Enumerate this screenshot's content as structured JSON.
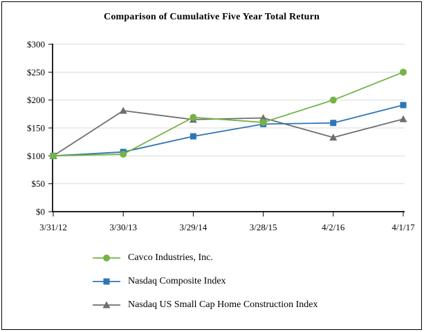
{
  "chart_data": {
    "type": "line",
    "title": "Comparison of Cumulative Five Year Total Return",
    "categories": [
      "3/31/12",
      "3/30/13",
      "3/29/14",
      "3/28/15",
      "4/2/16",
      "4/1/17"
    ],
    "series": [
      {
        "name": "Cavco Industries, Inc.",
        "marker": "circle",
        "color": "#74B347",
        "values": [
          100,
          103,
          169,
          160,
          200,
          250
        ]
      },
      {
        "name": "Nasdaq Composite Index",
        "marker": "square",
        "color": "#2E75B6",
        "values": [
          100,
          107,
          135,
          157,
          159,
          191
        ]
      },
      {
        "name": "Nasdaq US Small Cap Home Construction Index",
        "marker": "triangle",
        "color": "#6E6E6E",
        "values": [
          100,
          181,
          165,
          168,
          133,
          166
        ]
      }
    ],
    "y_axis": {
      "min": 0,
      "max": 300,
      "step": 50,
      "tick_prefix": "$"
    },
    "y_tick_labels": [
      "$0",
      "$50",
      "$100",
      "$150",
      "$200",
      "$250",
      "$300"
    ],
    "x_axis_label": "",
    "y_axis_label": "",
    "grid": "horizontal",
    "legend_position": "bottom-left"
  },
  "colors": {
    "gridline": "#D9D9D9",
    "axis": "#000000",
    "frame_border": "#000000",
    "background": "#FFFFFF"
  }
}
